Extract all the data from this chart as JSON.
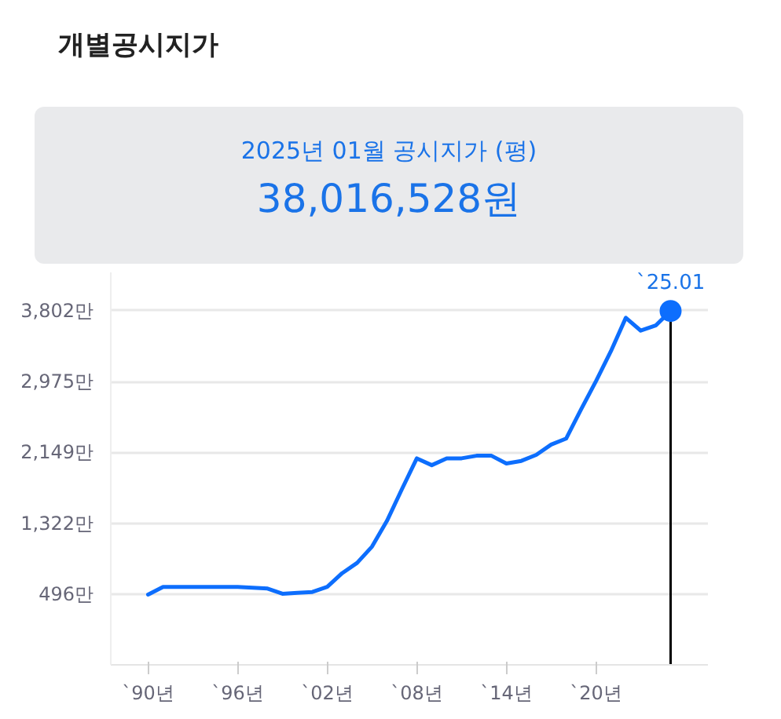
{
  "chart_data": {
    "type": "line",
    "title": "개별공시지가",
    "subtitle": "2025년 01월 공시지가 (평)",
    "categories": [
      "`90년",
      null,
      null,
      null,
      null,
      null,
      "`96년",
      null,
      null,
      null,
      null,
      null,
      "`02년",
      null,
      null,
      null,
      null,
      null,
      "`08년",
      null,
      null,
      null,
      null,
      null,
      "`14년",
      null,
      null,
      null,
      null,
      null,
      "`20년",
      null,
      null,
      null,
      null,
      null
    ],
    "series": [
      {
        "color": "#0d6efd",
        "values": [
          490,
          580,
          580,
          580,
          580,
          580,
          580,
          570,
          560,
          500,
          510,
          520,
          580,
          740,
          860,
          1050,
          1350,
          1720,
          2080,
          2000,
          2080,
          2080,
          2110,
          2110,
          2020,
          2050,
          2120,
          2240,
          2310,
          2650,
          2980,
          3330,
          3720,
          3570,
          3630,
          3800
        ]
      }
    ],
    "ylim": [
      -330,
      4250
    ],
    "yticks": [
      {
        "value": -330,
        "label": null
      },
      {
        "value": 496,
        "label": "496만"
      },
      {
        "value": 1322,
        "label": "1,322만"
      },
      {
        "value": 2149,
        "label": "2,149만"
      },
      {
        "value": 2975,
        "label": "2,975만"
      },
      {
        "value": 3802,
        "label": "3,802만"
      }
    ],
    "grid": "y",
    "line_style": "solid",
    "annotations": [
      "38,016,528원",
      {
        "text": "`25.01",
        "y": 3800
      }
    ]
  }
}
